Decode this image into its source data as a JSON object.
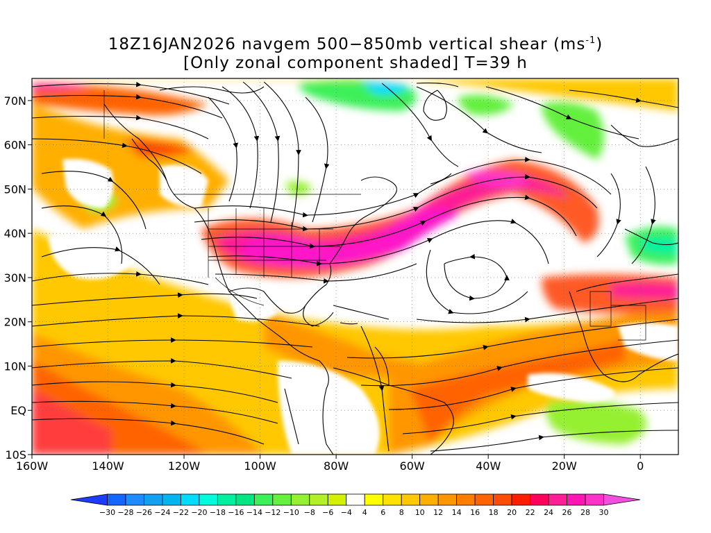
{
  "title": {
    "line1": "18Z16JAN2026 navgem 500−850mb vertical shear (ms",
    "line1_sup": "-1",
    "line1_end": ")",
    "line2": "[Only zonal component shaded] T=39 h"
  },
  "map": {
    "lon_min": -160,
    "lon_max": 10,
    "lat_min": -10,
    "lat_max": 75,
    "lat_ticks": [
      {
        "value": 70,
        "label": "70N"
      },
      {
        "value": 60,
        "label": "60N"
      },
      {
        "value": 50,
        "label": "50N"
      },
      {
        "value": 40,
        "label": "40N"
      },
      {
        "value": 30,
        "label": "30N"
      },
      {
        "value": 20,
        "label": "20N"
      },
      {
        "value": 10,
        "label": "10N"
      },
      {
        "value": 0,
        "label": "EQ"
      },
      {
        "value": -10,
        "label": "10S"
      }
    ],
    "lon_ticks": [
      {
        "value": -160,
        "label": "160W"
      },
      {
        "value": -140,
        "label": "140W"
      },
      {
        "value": -120,
        "label": "120W"
      },
      {
        "value": -100,
        "label": "100W"
      },
      {
        "value": -80,
        "label": "80W"
      },
      {
        "value": -60,
        "label": "60W"
      },
      {
        "value": -40,
        "label": "40W"
      },
      {
        "value": -20,
        "label": "20W"
      },
      {
        "value": 0,
        "label": "0"
      }
    ],
    "gridlines": "dotted"
  },
  "colorbar": {
    "labels": [
      "−30",
      "−28",
      "−26",
      "−24",
      "−22",
      "−20",
      "−18",
      "−16",
      "−14",
      "−12",
      "−10",
      "−8",
      "−6",
      "−4",
      "4",
      "6",
      "8",
      "10",
      "12",
      "14",
      "16",
      "18",
      "20",
      "22",
      "24",
      "26",
      "28",
      "30"
    ],
    "colors": [
      "#1e3cff",
      "#1464ff",
      "#1e8cff",
      "#14a0f0",
      "#00b4f0",
      "#00dcff",
      "#00fadc",
      "#00f0a0",
      "#00e682",
      "#3cf05a",
      "#64f03c",
      "#96f032",
      "#b4f028",
      "#d2f000",
      "#ffffff",
      "#ffff00",
      "#ffe100",
      "#ffc800",
      "#ffaf00",
      "#ff9600",
      "#ff7d00",
      "#ff6400",
      "#ff4b00",
      "#ff1e00",
      "#ff005a",
      "#ff1e96",
      "#ff14b4",
      "#ff32c8",
      "#f050dc"
    ]
  }
}
